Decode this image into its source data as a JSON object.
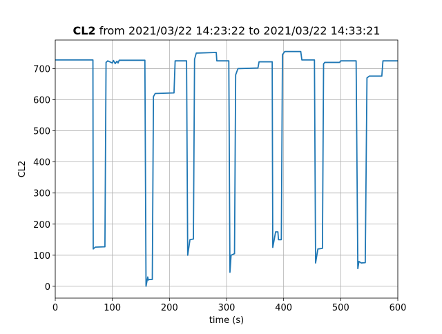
{
  "chart_data": {
    "type": "line",
    "title_bold": "CL2",
    "title": "from 2021/03/22 14:23:22 to 2021/03/22 14:33:21",
    "x_label": "time (s)",
    "y_label": "CL2",
    "color": "#1f77b4",
    "grid": true,
    "xlim": [
      0,
      600
    ],
    "xticks": [
      0,
      100,
      200,
      300,
      400,
      500,
      600
    ],
    "ylim": [
      -38,
      792
    ],
    "yticks": [
      0,
      100,
      200,
      300,
      400,
      500,
      600,
      700
    ],
    "x": [
      0,
      66,
      66.5,
      70,
      87,
      89,
      92,
      100,
      102,
      105,
      108,
      110,
      112,
      157,
      159,
      162,
      163,
      165,
      170,
      172,
      175,
      208,
      210,
      230,
      232,
      236,
      242,
      244,
      247,
      282,
      283,
      304,
      306,
      308,
      314,
      316,
      320,
      355,
      357,
      380,
      381,
      386,
      390,
      391,
      396,
      398,
      402,
      430,
      432,
      454,
      456,
      460,
      468,
      470,
      472,
      498,
      500,
      527,
      530,
      532,
      536,
      543,
      546,
      550,
      572,
      574,
      600
    ],
    "values": [
      728,
      728,
      120,
      126,
      127,
      720,
      725,
      718,
      726,
      716,
      724,
      718,
      727,
      727,
      0,
      30,
      20,
      22,
      22,
      610,
      620,
      622,
      725,
      725,
      100,
      150,
      152,
      730,
      750,
      752,
      725,
      725,
      45,
      100,
      105,
      680,
      700,
      702,
      722,
      722,
      125,
      175,
      175,
      150,
      150,
      745,
      755,
      755,
      728,
      728,
      75,
      120,
      122,
      715,
      720,
      720,
      725,
      725,
      57,
      80,
      75,
      76,
      670,
      676,
      676,
      725,
      725
    ]
  }
}
